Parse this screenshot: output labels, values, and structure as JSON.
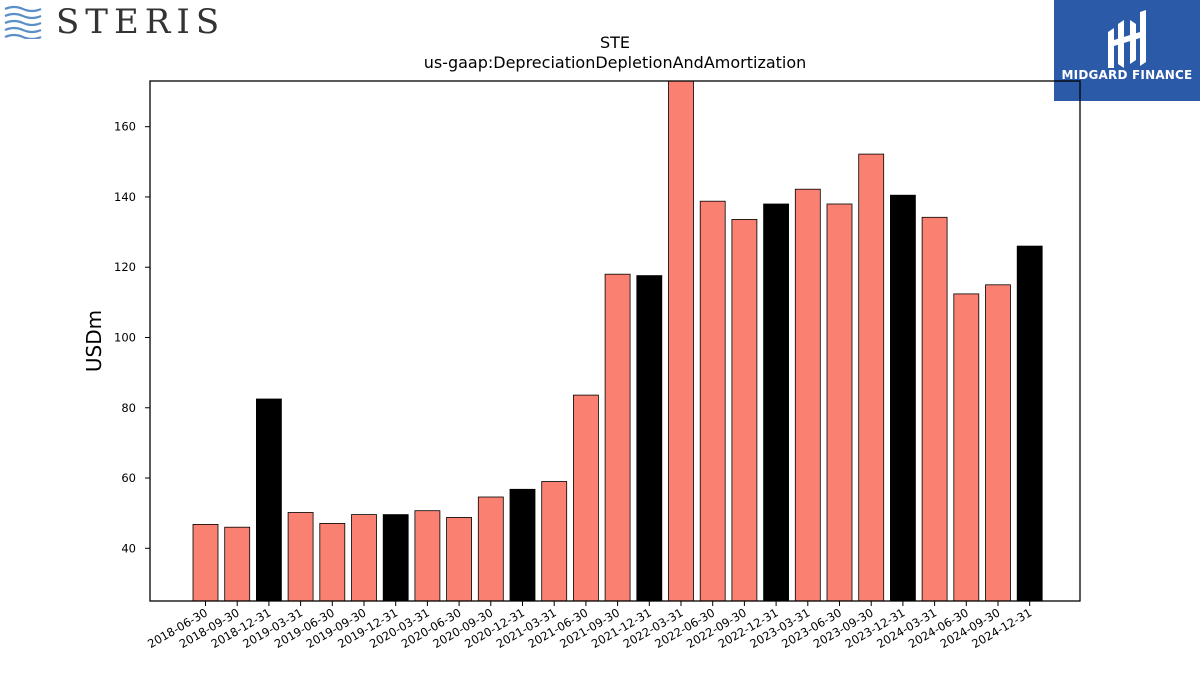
{
  "header": {
    "left_logo_text": "STERIS",
    "left_logo_icon": "steris-waves-icon",
    "right_logo_text": "MIDGARD FINANCE",
    "right_logo_icon": "midgard-mark-icon"
  },
  "colors": {
    "quarter_bar": "#fa8072",
    "fiscal_year_end_bar": "#000000",
    "bar_edge": "#000000",
    "right_logo_bg": "#2b5aa8"
  },
  "chart_data": {
    "type": "bar",
    "title": "STE",
    "subtitle": "us-gaap:DepreciationDepletionAndAmortization",
    "xlabel": "",
    "ylabel": "USDm",
    "ylim": [
      25,
      173
    ],
    "yticks": [
      40,
      60,
      80,
      100,
      120,
      140,
      160
    ],
    "grid": false,
    "categories": [
      "2018-06-30",
      "2018-09-30",
      "2018-12-31",
      "2019-03-31",
      "2019-06-30",
      "2019-09-30",
      "2019-12-31",
      "2020-03-31",
      "2020-06-30",
      "2020-09-30",
      "2020-12-31",
      "2021-03-31",
      "2021-06-30",
      "2021-09-30",
      "2021-12-31",
      "2022-03-31",
      "2022-06-30",
      "2022-09-30",
      "2022-12-31",
      "2023-03-31",
      "2023-06-30",
      "2023-09-30",
      "2023-12-31",
      "2024-03-31",
      "2024-06-30",
      "2024-09-30",
      "2024-12-31"
    ],
    "values": [
      46.8,
      46.0,
      82.5,
      50.2,
      47.1,
      49.6,
      49.6,
      50.7,
      48.8,
      54.6,
      56.8,
      59.0,
      83.6,
      118.0,
      117.6,
      173.0,
      138.8,
      133.6,
      138.0,
      142.2,
      138.0,
      152.2,
      140.5,
      134.2,
      112.4,
      115.0,
      126.0
    ],
    "highlight_fiscal_year_end": [
      false,
      false,
      true,
      false,
      false,
      false,
      true,
      false,
      false,
      false,
      true,
      false,
      false,
      false,
      true,
      false,
      false,
      false,
      true,
      false,
      false,
      false,
      true,
      false,
      false,
      false,
      true
    ]
  }
}
